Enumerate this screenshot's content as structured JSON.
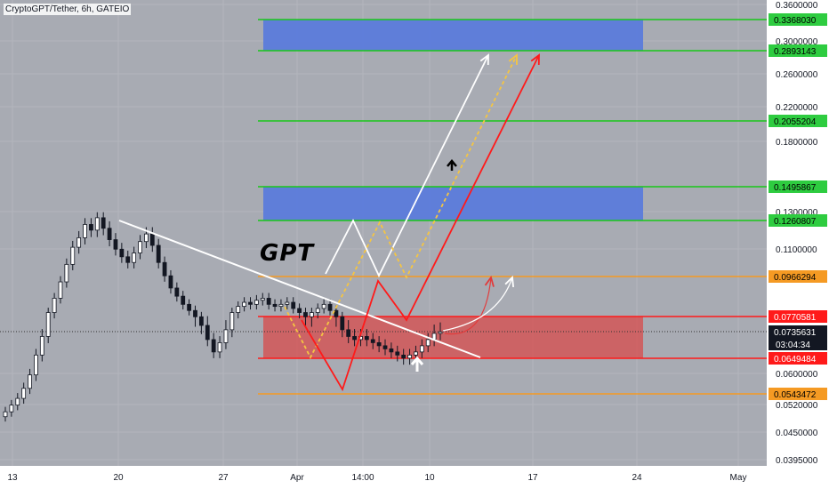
{
  "header": {
    "title": "CryptoGPT/Tether, 6h, GATEIO"
  },
  "annotation": {
    "brand_text": "GPT"
  },
  "colors": {
    "background": "#ffffff",
    "plot_background": "#a8abb3",
    "grid": "#b3b6bd",
    "candle": "#131722",
    "green_line": "#19c819",
    "orange_line": "#f59a23",
    "red_line": "#ff1a1a",
    "blue_zone": "#5b7bdb",
    "red_zone": "#d84b4b",
    "trend_line": "#ffffff",
    "arrow_white": "#ffffff",
    "arrow_yellow": "#f5c542",
    "arrow_red": "#ff1a1a"
  },
  "chart_data": {
    "type": "candlestick",
    "title": "CryptoGPT/Tether, 6h, GATEIO",
    "y_ticks": [
      "0.3600000",
      "0.3000000",
      "0.2600000",
      "0.2200000",
      "0.1800000",
      "0.1300000",
      "0.1100000",
      "0.0600000",
      "0.0520000",
      "0.0450000",
      "0.0395000"
    ],
    "x_ticks": [
      "13",
      "20",
      "27",
      "Apr",
      "14:00",
      "10",
      "17",
      "24",
      "May"
    ],
    "levels": [
      {
        "value": "0.3368030",
        "color": "green"
      },
      {
        "value": "0.2893143",
        "color": "green"
      },
      {
        "value": "0.2055204",
        "color": "green"
      },
      {
        "value": "0.1495867",
        "color": "green"
      },
      {
        "value": "0.1260807",
        "color": "green"
      },
      {
        "value": "0.0966294",
        "color": "orange"
      },
      {
        "value": "0.0770581",
        "color": "red"
      },
      {
        "value": "0.0649484",
        "color": "red"
      },
      {
        "value": "0.0543472",
        "color": "orange"
      }
    ],
    "zones": [
      {
        "type": "resistance",
        "color": "blue",
        "from": "0.2893143",
        "to": "0.3368030"
      },
      {
        "type": "resistance",
        "color": "blue",
        "from": "0.1260807",
        "to": "0.1495867"
      },
      {
        "type": "support",
        "color": "red",
        "from": "0.0649484",
        "to": "0.0770581"
      }
    ],
    "current_price": {
      "value": "0.0735631",
      "countdown": "03:04:34"
    },
    "candles_close": [
      0.049,
      0.051,
      0.053,
      0.056,
      0.06,
      0.066,
      0.072,
      0.079,
      0.086,
      0.094,
      0.103,
      0.112,
      0.117,
      0.124,
      0.121,
      0.128,
      0.122,
      0.116,
      0.111,
      0.107,
      0.104,
      0.109,
      0.115,
      0.119,
      0.113,
      0.104,
      0.097,
      0.091,
      0.087,
      0.083,
      0.08,
      0.077,
      0.075,
      0.071,
      0.067,
      0.07,
      0.074,
      0.079,
      0.082,
      0.084,
      0.083,
      0.085,
      0.086,
      0.083,
      0.082,
      0.083,
      0.084,
      0.081,
      0.079,
      0.077,
      0.079,
      0.081,
      0.083,
      0.08,
      0.077,
      0.074,
      0.072,
      0.071,
      0.072,
      0.071,
      0.07,
      0.069,
      0.068,
      0.067,
      0.066,
      0.065,
      0.066,
      0.067,
      0.069,
      0.071,
      0.073,
      0.0735
    ]
  }
}
